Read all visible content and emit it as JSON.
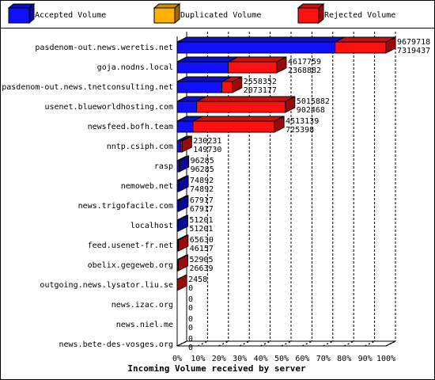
{
  "chart_data": {
    "type": "bar3d",
    "orientation": "horizontal",
    "stacked": true,
    "x_label": "Incoming Volume received by server",
    "categories": [
      "pasdenom-out.news.weretis.net",
      "goja.nodns.local",
      "pasdenom-out.news.tnetconsulting.net",
      "usenet.blueworldhosting.com",
      "newsfeed.bofh.team",
      "nntp.csiph.com",
      "rasp",
      "nemoweb.net",
      "news.trigofacile.com",
      "localhost",
      "feed.usenet-fr.net",
      "obelix.gegeweb.org",
      "outgoing.news.lysator.liu.se",
      "news.izac.org",
      "news.niel.me",
      "news.bete-des-vosges.org"
    ],
    "series": [
      {
        "name": "Accepted Volume",
        "color": "#1010ff",
        "values": [
          7319437,
          2368882,
          2073177,
          902468,
          725398,
          149730,
          96285,
          74892,
          67917,
          51201,
          46157,
          26639,
          0,
          0,
          0,
          0
        ]
      },
      {
        "name": "Duplicated Volume",
        "color": "#ffb000",
        "values": [
          0,
          0,
          0,
          0,
          0,
          0,
          0,
          0,
          0,
          0,
          0,
          0,
          0,
          0,
          0,
          0
        ]
      },
      {
        "name": "Rejected Volume",
        "color": "#ff1010",
        "values": [
          2360281,
          2248877,
          485175,
          4113414,
          3787741,
          80501,
          0,
          0,
          0,
          0,
          19473,
          26266,
          2458,
          0,
          0,
          0
        ]
      }
    ],
    "totals": [
      9679718,
      4617759,
      2558352,
      5015882,
      4513139,
      230231,
      96285,
      74892,
      67917,
      51201,
      65630,
      52905,
      2458,
      0,
      0,
      0
    ],
    "xlim": [
      0,
      9679718
    ],
    "xticks": [
      {
        "value": 0,
        "label": "0%"
      },
      {
        "value": 967971.8,
        "label": "10%"
      },
      {
        "value": 1935943.6,
        "label": "20%"
      },
      {
        "value": 2903915.4,
        "label": "30%"
      },
      {
        "value": 3871887.2,
        "label": "40%"
      },
      {
        "value": 4839859,
        "label": "50%"
      },
      {
        "value": 5807830.8,
        "label": "60%"
      },
      {
        "value": 6775802.6,
        "label": "70%"
      },
      {
        "value": 7743774.4,
        "label": "80%"
      },
      {
        "value": 8711746.2,
        "label": "90%"
      },
      {
        "value": 9679718,
        "label": "100%"
      }
    ],
    "grid": true
  }
}
